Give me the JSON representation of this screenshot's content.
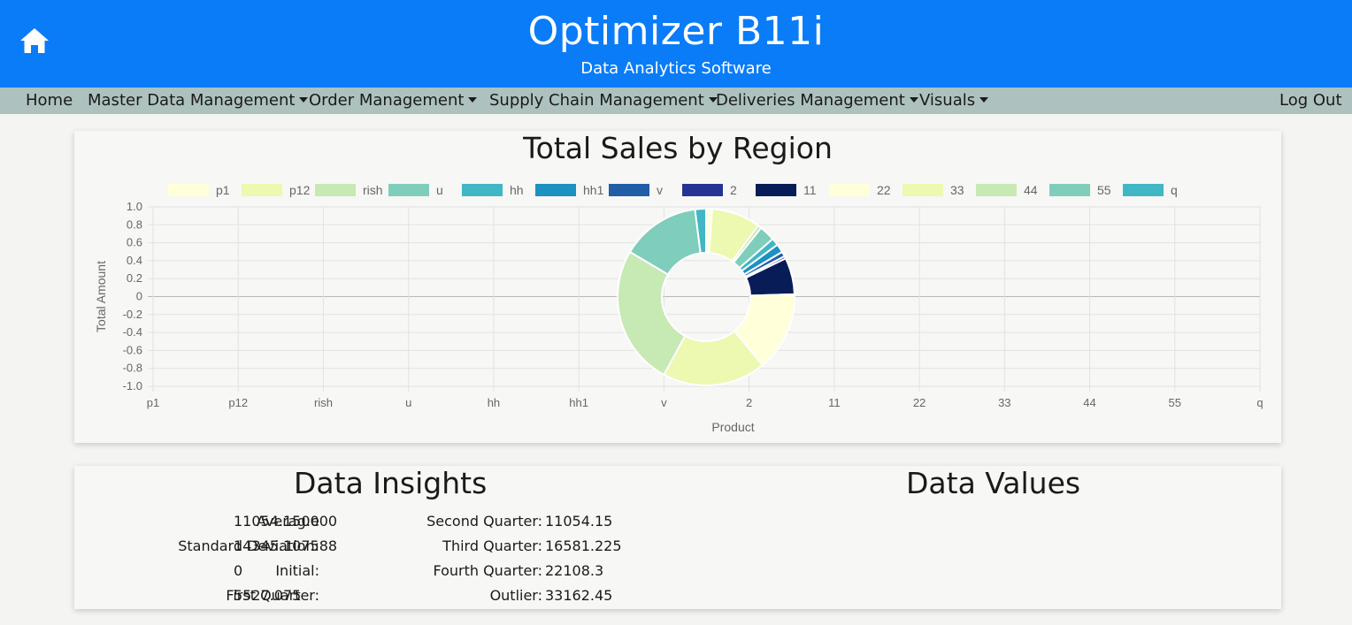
{
  "header": {
    "title": "Optimizer B11i",
    "subtitle": "Data Analytics Software",
    "home_icon": "home-icon"
  },
  "nav": {
    "home": "Home",
    "master_data": "Master Data Management",
    "orders": "Order Management",
    "supply_chain": "Supply Chain Management",
    "deliveries": "Deliveries Management",
    "visuals": "Visuals",
    "logout": "Log Out"
  },
  "chart_data": {
    "type": "doughnut",
    "title": "Total Sales by Region",
    "xlabel": "Product",
    "ylabel": "Total Amount",
    "ylim": [
      -1.0,
      1.0
    ],
    "yticks": [
      "1.0",
      "0.8",
      "0.6",
      "0.4",
      "0.2",
      "0",
      "-0.2",
      "-0.4",
      "-0.6",
      "-0.8",
      "-1.0"
    ],
    "categories": [
      "p1",
      "p12",
      "rish",
      "u",
      "hh",
      "hh1",
      "v",
      "2",
      "11",
      "22",
      "33",
      "44",
      "55",
      "q"
    ],
    "values": [
      500,
      4000,
      300,
      1300,
      600,
      700,
      400,
      200,
      3000,
      6500,
      8500,
      11500,
      6500,
      900
    ],
    "colors": [
      "#ffffd9",
      "#edf8b1",
      "#c7e9b4",
      "#7fcdbb",
      "#41b6c4",
      "#1d91c0",
      "#225ea8",
      "#253494",
      "#081d58",
      "#ffffd9",
      "#edf8b1",
      "#c7e9b4",
      "#7fcdbb",
      "#41b6c4"
    ],
    "legend": "top",
    "grid": true
  },
  "insights": {
    "title": "Data Insights",
    "average_label": "Averag:e",
    "average_value": "11054.150000",
    "std_label": "Standard Deviation:",
    "std_value": "14345.107588",
    "initial_label": "Initial:",
    "initial_value": "0",
    "q1_label": "First Quarter:",
    "q1_value": "5527.075",
    "q2_label": "Second Quarter:",
    "q2_value": "11054.15",
    "q3_label": "Third Quarter:",
    "q3_value": "16581.225",
    "q4_label": "Fourth Quarter:",
    "q4_value": "22108.3",
    "outlier_label": "Outlier:",
    "outlier_value": "33162.45"
  },
  "values_section": {
    "title": "Data Values"
  }
}
